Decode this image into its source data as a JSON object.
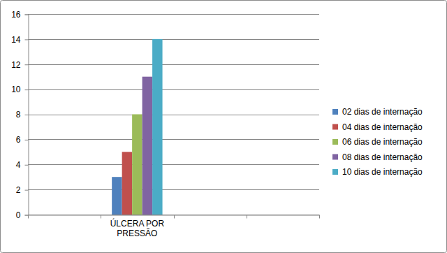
{
  "chart_data": {
    "type": "bar",
    "categories": [
      null,
      "ÚLCERA POR PRESSÃO",
      null,
      null
    ],
    "series": [
      {
        "name": "02 dias de internação",
        "color": "#4f81bd",
        "values": [
          null,
          3,
          null,
          null
        ]
      },
      {
        "name": "04 dias de internação",
        "color": "#c0504d",
        "values": [
          null,
          5,
          null,
          null
        ]
      },
      {
        "name": "06 dias de internação",
        "color": "#9bbb59",
        "values": [
          null,
          8,
          null,
          null
        ]
      },
      {
        "name": "08 dias de internação",
        "color": "#8064a2",
        "values": [
          null,
          11,
          null,
          null
        ]
      },
      {
        "name": "10 dias de internação",
        "color": "#4bacc6",
        "values": [
          null,
          14,
          null,
          null
        ]
      }
    ],
    "ylim": [
      0,
      16
    ],
    "yticks": [
      0,
      2,
      4,
      6,
      8,
      10,
      12,
      14,
      16
    ],
    "grid": true,
    "legend": "right"
  }
}
